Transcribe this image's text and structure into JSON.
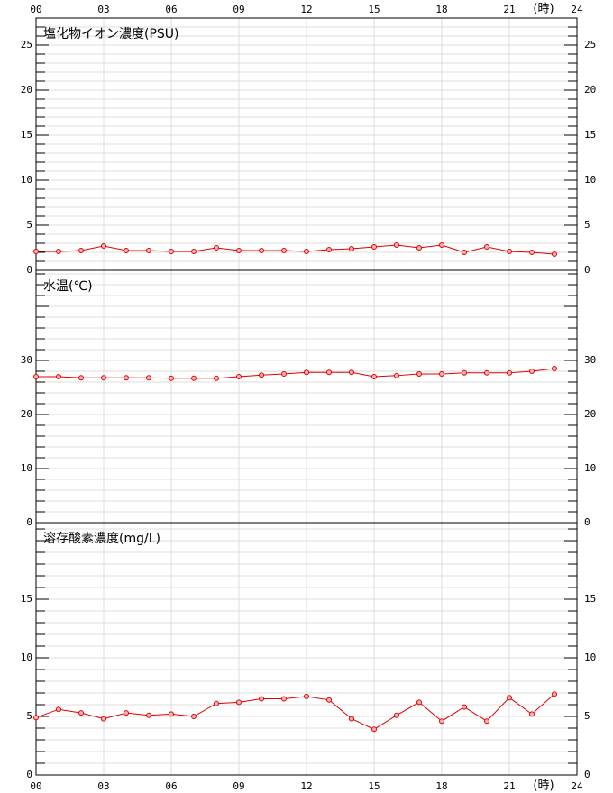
{
  "chart_data": [
    {
      "type": "line",
      "title": "塩化物イオン濃度(PSU)",
      "color": "#e00000",
      "xlabel": "(時)",
      "xtick_side": "top",
      "x": [
        0,
        1,
        2,
        3,
        4,
        5,
        6,
        7,
        8,
        9,
        10,
        11,
        12,
        13,
        14,
        15,
        16,
        17,
        18,
        19,
        20,
        21,
        22,
        23
      ],
      "values": [
        2.1,
        2.1,
        2.2,
        2.7,
        2.2,
        2.2,
        2.1,
        2.1,
        2.5,
        2.2,
        2.2,
        2.2,
        2.1,
        2.3,
        2.4,
        2.6,
        2.8,
        2.5,
        2.8,
        2.0,
        2.6,
        2.1,
        2.0,
        1.8
      ],
      "xlim": [
        0,
        24
      ],
      "xticks": [
        {
          "value": 0,
          "label": "00"
        },
        {
          "value": 3,
          "label": "03"
        },
        {
          "value": 6,
          "label": "06"
        },
        {
          "value": 9,
          "label": "09"
        },
        12,
        15,
        18,
        21,
        24
      ],
      "ylim": [
        0,
        28
      ],
      "yticks": [
        0,
        5,
        10,
        15,
        20,
        25
      ],
      "grid": true
    },
    {
      "type": "line",
      "title": "水温(℃)",
      "color": "#e00000",
      "xtick_side": "none",
      "x": [
        0,
        1,
        2,
        3,
        4,
        5,
        6,
        7,
        8,
        9,
        10,
        11,
        12,
        13,
        14,
        15,
        16,
        17,
        18,
        19,
        20,
        21,
        22,
        23
      ],
      "values": [
        27.0,
        27.0,
        26.8,
        26.8,
        26.8,
        26.8,
        26.7,
        26.7,
        26.7,
        27.0,
        27.3,
        27.5,
        27.8,
        27.8,
        27.8,
        27.0,
        27.2,
        27.5,
        27.5,
        27.7,
        27.7,
        27.7,
        28.0,
        28.5
      ],
      "xlim": [
        0,
        24
      ],
      "xticks": [
        {
          "value": 0,
          "label": "00"
        },
        {
          "value": 3,
          "label": "03"
        },
        {
          "value": 6,
          "label": "06"
        },
        {
          "value": 9,
          "label": "09"
        },
        12,
        15,
        18,
        21,
        24
      ],
      "ylim": [
        0,
        46.67
      ],
      "yticks": [
        0,
        10,
        20,
        30
      ],
      "grid": true
    },
    {
      "type": "line",
      "title": "溶存酸素濃度(mg/L)",
      "color": "#e00000",
      "xlabel": "(時)",
      "xtick_side": "bottom",
      "x": [
        0,
        1,
        2,
        3,
        4,
        5,
        6,
        7,
        8,
        9,
        10,
        11,
        12,
        13,
        14,
        15,
        16,
        17,
        18,
        19,
        20,
        21,
        22,
        23
      ],
      "values": [
        4.9,
        5.6,
        5.3,
        4.8,
        5.3,
        5.1,
        5.2,
        5.0,
        6.1,
        6.2,
        6.5,
        6.5,
        6.7,
        6.4,
        4.8,
        3.9,
        5.1,
        6.2,
        4.6,
        5.8,
        4.6,
        6.6,
        5.2,
        6.9
      ],
      "xlim": [
        0,
        24
      ],
      "xticks": [
        {
          "value": 0,
          "label": "00"
        },
        {
          "value": 3,
          "label": "03"
        },
        {
          "value": 6,
          "label": "06"
        },
        {
          "value": 9,
          "label": "09"
        },
        12,
        15,
        18,
        21,
        24
      ],
      "ylim": [
        0,
        21.54
      ],
      "yticks": [
        0,
        5,
        10,
        15
      ],
      "grid": true
    }
  ]
}
